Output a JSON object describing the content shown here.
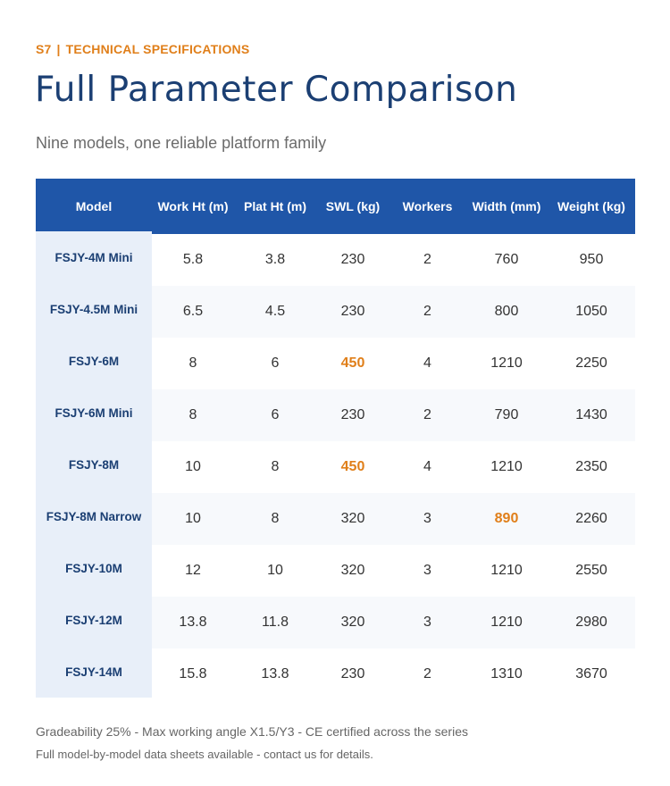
{
  "header": {
    "section": "S7",
    "divider": "|",
    "label": "TECHNICAL SPECIFICATIONS",
    "title": "Full Parameter Comparison",
    "subtitle": "Nine models, one reliable platform family"
  },
  "colors": {
    "accent": "#e07f1a",
    "header_bg": "#1f56a8",
    "title": "#1b3f73"
  },
  "table": {
    "columns": [
      "Model",
      "Work Ht (m)",
      "Plat Ht (m)",
      "SWL (kg)",
      "Workers",
      "Width (mm)",
      "Weight (kg)"
    ],
    "rows": [
      {
        "model": "FSJY-4M Mini",
        "work": "5.8",
        "plat": "3.8",
        "swl": "230",
        "workers": "2",
        "width": "760",
        "weight": "950"
      },
      {
        "model": "FSJY-4.5M Mini",
        "work": "6.5",
        "plat": "4.5",
        "swl": "230",
        "workers": "2",
        "width": "800",
        "weight": "1050"
      },
      {
        "model": "FSJY-6M",
        "work": "8",
        "plat": "6",
        "swl": "450",
        "workers": "4",
        "width": "1210",
        "weight": "2250"
      },
      {
        "model": "FSJY-6M Mini",
        "work": "8",
        "plat": "6",
        "swl": "230",
        "workers": "2",
        "width": "790",
        "weight": "1430"
      },
      {
        "model": "FSJY-8M",
        "work": "10",
        "plat": "8",
        "swl": "450",
        "workers": "4",
        "width": "1210",
        "weight": "2350"
      },
      {
        "model": "FSJY-8M Narrow",
        "work": "10",
        "plat": "8",
        "swl": "320",
        "workers": "3",
        "width": "890",
        "weight": "2260"
      },
      {
        "model": "FSJY-10M",
        "work": "12",
        "plat": "10",
        "swl": "320",
        "workers": "3",
        "width": "1210",
        "weight": "2550"
      },
      {
        "model": "FSJY-12M",
        "work": "13.8",
        "plat": "11.8",
        "swl": "320",
        "workers": "3",
        "width": "1210",
        "weight": "2980"
      },
      {
        "model": "FSJY-14M",
        "work": "15.8",
        "plat": "13.8",
        "swl": "230",
        "workers": "2",
        "width": "1310",
        "weight": "3670"
      }
    ]
  },
  "footer": {
    "line1": "Gradeability 25%  -  Max working angle X1.5/Y3  -  CE certified across the series",
    "line2": "Full model-by-model data sheets available - contact us for details."
  }
}
